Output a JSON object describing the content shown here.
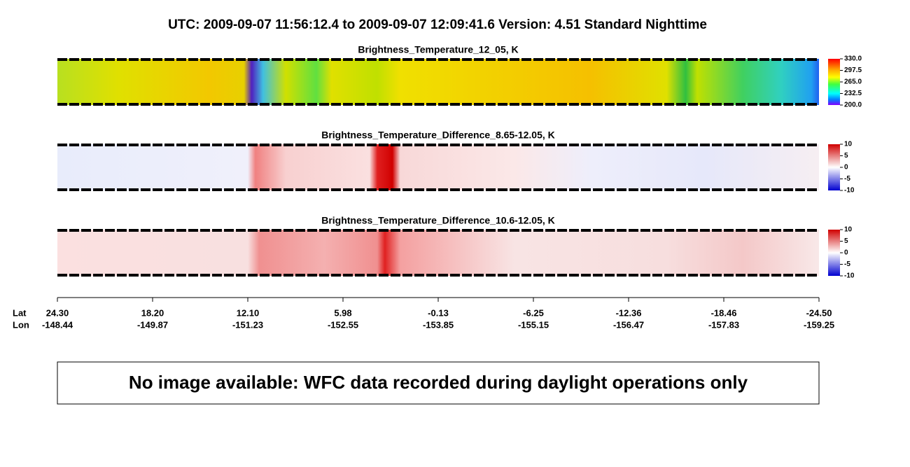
{
  "header": {
    "title": "UTC:  2009-09-07   11:56:12.4  to  2009-09-07   12:09:41.6    Version: 4.51  Standard Nighttime"
  },
  "panels": [
    {
      "title": "Brightness_Temperature_12_05, K",
      "colorbar": [
        "330.0",
        "297.5",
        "265.0",
        "232.5",
        "200.0"
      ]
    },
    {
      "title": "Brightness_Temperature_Difference_8.65-12.05, K",
      "colorbar": [
        "10",
        "5",
        "0",
        "-5",
        "-10"
      ]
    },
    {
      "title": "Brightness_Temperature_Difference_10.6-12.05, K",
      "colorbar": [
        "10",
        "5",
        "0",
        "-5",
        "-10"
      ]
    }
  ],
  "axis": {
    "lat_label": "Lat",
    "lon_label": "Lon",
    "lat": [
      "24.30",
      "18.20",
      "12.10",
      "5.98",
      "-0.13",
      "-6.25",
      "-12.36",
      "-18.46",
      "-24.50"
    ],
    "lon": [
      "-148.44",
      "-149.87",
      "-151.23",
      "-152.55",
      "-153.85",
      "-155.15",
      "-156.47",
      "-157.83",
      "-159.25"
    ]
  },
  "message": "No image available: WFC data recorded during daylight operations only"
}
